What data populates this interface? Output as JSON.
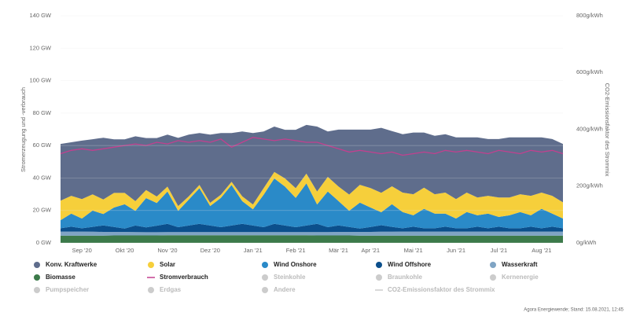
{
  "chart_data": {
    "type": "stacked_area",
    "categories": [
      null,
      null,
      "Sep '20",
      null,
      null,
      null,
      "Okt '20",
      null,
      null,
      null,
      "Nov '20",
      null,
      null,
      null,
      "Dez '20",
      null,
      null,
      null,
      "Jan '21",
      null,
      null,
      null,
      "Feb '21",
      null,
      null,
      null,
      "Mär '21",
      null,
      null,
      "Apr '21",
      null,
      null,
      null,
      "Mai '21",
      null,
      null,
      null,
      "Jun '21",
      null,
      null,
      null,
      "Jul '21",
      null,
      null,
      null,
      "Aug '21",
      null,
      null
    ],
    "y_label": "Stromerzeugung und -verbrauch",
    "y2_label": "CO2-Emissionsfaktor des Strommix",
    "ylim": [
      0,
      140
    ],
    "yticks": [
      {
        "value": 0,
        "label": "0 GW"
      },
      {
        "value": 20,
        "label": "20 GW"
      },
      {
        "value": 40,
        "label": "40 GW"
      },
      {
        "value": 60,
        "label": "60 GW"
      },
      {
        "value": 80,
        "label": "80 GW"
      },
      {
        "value": 100,
        "label": "100 GW"
      },
      {
        "value": 120,
        "label": "120 GW"
      },
      {
        "value": 140,
        "label": "140 GW"
      }
    ],
    "y2lim": [
      0,
      800
    ],
    "y2ticks": [
      {
        "value": 0,
        "label": "0g/kWh"
      },
      {
        "value": 200,
        "label": "200g/kWh"
      },
      {
        "value": 400,
        "label": "400g/kWh"
      },
      {
        "value": 600,
        "label": "600g/kWh"
      },
      {
        "value": 800,
        "label": "800g/kWh"
      }
    ],
    "series": [
      {
        "name": "Konv. Kraftwerke",
        "color": "#5f6d8c",
        "mark": "area",
        "values": [
          35,
          33,
          36,
          34,
          38,
          33,
          33,
          40,
          32,
          36,
          32,
          42,
          38,
          32,
          42,
          38,
          30,
          40,
          44,
          35,
          28,
          30,
          36,
          30,
          40,
          28,
          35,
          40,
          34,
          36,
          40,
          34,
          36,
          38,
          34,
          36,
          36,
          38,
          34,
          37,
          35,
          36,
          37,
          35,
          36,
          34,
          35,
          36
        ]
      },
      {
        "name": "Solar",
        "color": "#f6cf3b",
        "mark": "area",
        "values": [
          12,
          11,
          12,
          10,
          9,
          9,
          7,
          6,
          5,
          4,
          3,
          3,
          2,
          2,
          2,
          2,
          2,
          3,
          3,
          4,
          4,
          5,
          6,
          6,
          8,
          9,
          9,
          10,
          11,
          12,
          12,
          11,
          12,
          13,
          13,
          12,
          13,
          12,
          12,
          11,
          11,
          12,
          11,
          11,
          12,
          10,
          11,
          10
        ]
      },
      {
        "name": "Wind Onshore",
        "color": "#2a8ac8",
        "mark": "area",
        "values": [
          5,
          8,
          6,
          10,
          7,
          12,
          15,
          9,
          18,
          14,
          20,
          10,
          16,
          22,
          12,
          18,
          25,
          14,
          10,
          20,
          28,
          24,
          18,
          26,
          12,
          22,
          15,
          10,
          16,
          12,
          8,
          14,
          10,
          7,
          12,
          9,
          8,
          6,
          10,
          7,
          9,
          6,
          8,
          10,
          7,
          12,
          8,
          6
        ]
      },
      {
        "name": "Wind Offshore",
        "color": "#0b4f8c",
        "mark": "area",
        "values": [
          2,
          3,
          2,
          3,
          4,
          3,
          2,
          4,
          3,
          4,
          5,
          3,
          4,
          5,
          4,
          3,
          4,
          5,
          4,
          3,
          5,
          4,
          3,
          4,
          5,
          3,
          4,
          3,
          2,
          3,
          4,
          3,
          2,
          3,
          2,
          2,
          3,
          2,
          2,
          3,
          2,
          3,
          2,
          2,
          3,
          2,
          3,
          2
        ]
      },
      {
        "name": "Wasserkraft",
        "color": "#7fa4c4",
        "mark": "area",
        "values": [
          2.5,
          2.5,
          2.5,
          2.4,
          2.3,
          2.2,
          2.2,
          2.1,
          2,
          2,
          2,
          2,
          2,
          2,
          2,
          2,
          2,
          2,
          2,
          2,
          2,
          2,
          2,
          2,
          2.1,
          2.1,
          2.2,
          2.2,
          2.3,
          2.3,
          2.4,
          2.4,
          2.5,
          2.5,
          2.5,
          2.5,
          2.5,
          2.5,
          2.5,
          2.5,
          2.5,
          2.5,
          2.5,
          2.5,
          2.5,
          2.5,
          2.5,
          2.5
        ]
      },
      {
        "name": "Biomasse",
        "color": "#3c7a4a",
        "mark": "area",
        "values": [
          4.5,
          4.5,
          4.5,
          4.5,
          4.5,
          4.6,
          4.6,
          4.6,
          4.6,
          4.6,
          4.7,
          4.7,
          4.7,
          4.7,
          4.7,
          4.7,
          4.7,
          4.7,
          4.7,
          4.7,
          4.7,
          4.7,
          4.7,
          4.7,
          4.6,
          4.6,
          4.6,
          4.6,
          4.5,
          4.5,
          4.5,
          4.5,
          4.5,
          4.5,
          4.5,
          4.5,
          4.5,
          4.5,
          4.5,
          4.5,
          4.5,
          4.5,
          4.5,
          4.5,
          4.5,
          4.5,
          4.5,
          4.5
        ]
      },
      {
        "name": "Stromverbrauch",
        "color": "#c2408f",
        "mark": "line",
        "values": [
          55,
          57,
          58,
          57,
          58,
          59,
          60,
          61,
          60,
          62,
          61,
          63,
          62,
          63,
          62,
          64,
          59,
          62,
          65,
          64,
          63,
          64,
          63,
          62,
          62,
          60,
          58,
          56,
          57,
          56,
          55,
          56,
          54,
          55,
          56,
          55,
          57,
          56,
          57,
          56,
          55,
          57,
          56,
          55,
          57,
          56,
          57,
          55
        ]
      }
    ],
    "inactive_series": [
      {
        "name": "Steinkohle",
        "color": "#cccccc",
        "mark": "area"
      },
      {
        "name": "Braunkohle",
        "color": "#cccccc",
        "mark": "area"
      },
      {
        "name": "Kernenergie",
        "color": "#cccccc",
        "mark": "area"
      },
      {
        "name": "Pumpspeicher",
        "color": "#cccccc",
        "mark": "area"
      },
      {
        "name": "Erdgas",
        "color": "#cccccc",
        "mark": "area"
      },
      {
        "name": "Andere",
        "color": "#cccccc",
        "mark": "area"
      },
      {
        "name": "CO2-Emissionsfaktor des Strommix",
        "color": "#cccccc",
        "mark": "line"
      }
    ],
    "grid": true,
    "source": "Agora Energiewende; Stand: 15.08.2021, 12:45"
  }
}
